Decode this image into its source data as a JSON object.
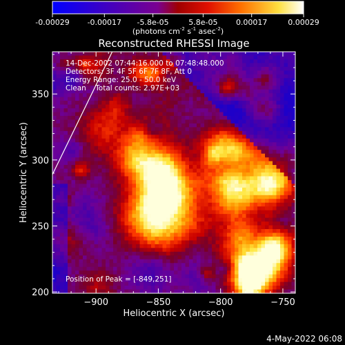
{
  "colorbar": {
    "tick_labels": [
      "-0.00029",
      "-0.00017",
      "-5.8e-05",
      "5.8e-05",
      "0.00017",
      "0.00029"
    ],
    "tick_values": [
      -0.00029,
      -0.00017,
      -5.8e-05,
      5.8e-05,
      0.00017,
      0.00029
    ],
    "range": [
      -0.00029,
      0.00029
    ],
    "unit_main": "(photons cm",
    "unit_exp1": "-2",
    "unit_mid": " s",
    "unit_exp2": "-1",
    "unit_end": " asec",
    "unit_exp3": "-2",
    "unit_close": ")",
    "colors": [
      "#0000ff",
      "#5500b0",
      "#7a00a0",
      "#b00000",
      "#ff3000",
      "#ff9000",
      "#ffff60",
      "#ffffff"
    ]
  },
  "chart_data": {
    "type": "heatmap",
    "title": "Reconstructed RHESSI Image",
    "xlabel": "Heliocentric X (arcsec)",
    "ylabel": "Heliocentric Y (arcsec)",
    "xlim": [
      -935,
      -740
    ],
    "ylim": [
      199,
      382
    ],
    "x_ticks": [
      -900,
      -850,
      -800,
      -750
    ],
    "x_tick_labels": [
      "−900",
      "−850",
      "−800",
      "−750"
    ],
    "y_ticks": [
      200,
      250,
      300,
      350
    ],
    "y_tick_labels": [
      "200",
      "250",
      "300",
      "350"
    ],
    "annotations": [
      "14-Dec-2002 07:44:16.000 to 07:48:48.000",
      "Detectors: 3F 4F 5F 6F 7F 8F, Att 0",
      "Energy Range: 25.0 - 50.0 keV",
      "Clean    Total counts: 2.97E+03"
    ],
    "peak_label": "Position of Peak = [-849,251]",
    "peak_position": [
      -849,
      251
    ],
    "limb_line": [
      [
        -935,
        289
      ],
      [
        -887,
        382
      ]
    ]
  },
  "footer": {
    "timestamp": "4-May-2022 06:08"
  }
}
